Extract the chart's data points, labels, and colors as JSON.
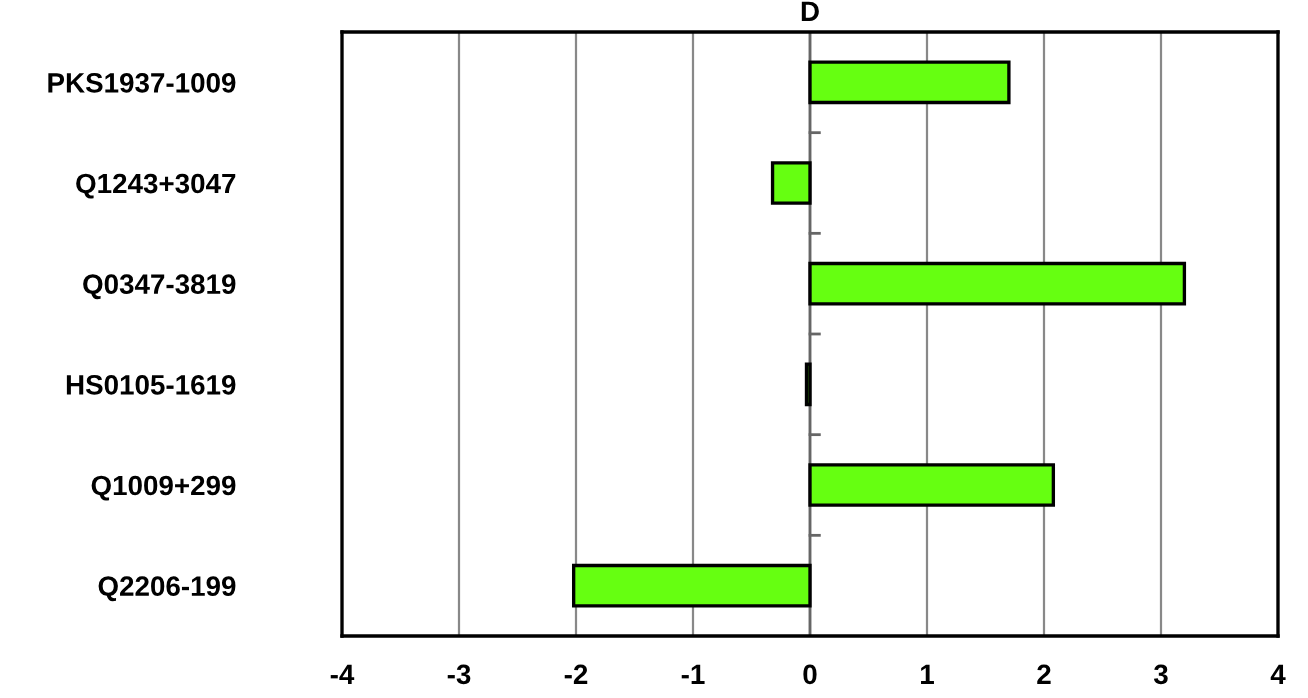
{
  "chart_data": {
    "type": "bar",
    "title": "D",
    "orientation": "horizontal",
    "categories": [
      "PKS1937-1009",
      "Q1243+3047",
      "Q0347-3819",
      "HS0105-1619",
      "Q1009+299",
      "Q2206-199"
    ],
    "values": [
      1.7,
      -0.32,
      3.2,
      -0.03,
      2.08,
      -2.02
    ],
    "color": "#66ff11",
    "xlim": [
      -4,
      4
    ],
    "xticks": [
      -4,
      -3,
      -2,
      -1,
      0,
      1,
      2,
      3,
      4
    ],
    "grid": "x",
    "legend": false
  }
}
